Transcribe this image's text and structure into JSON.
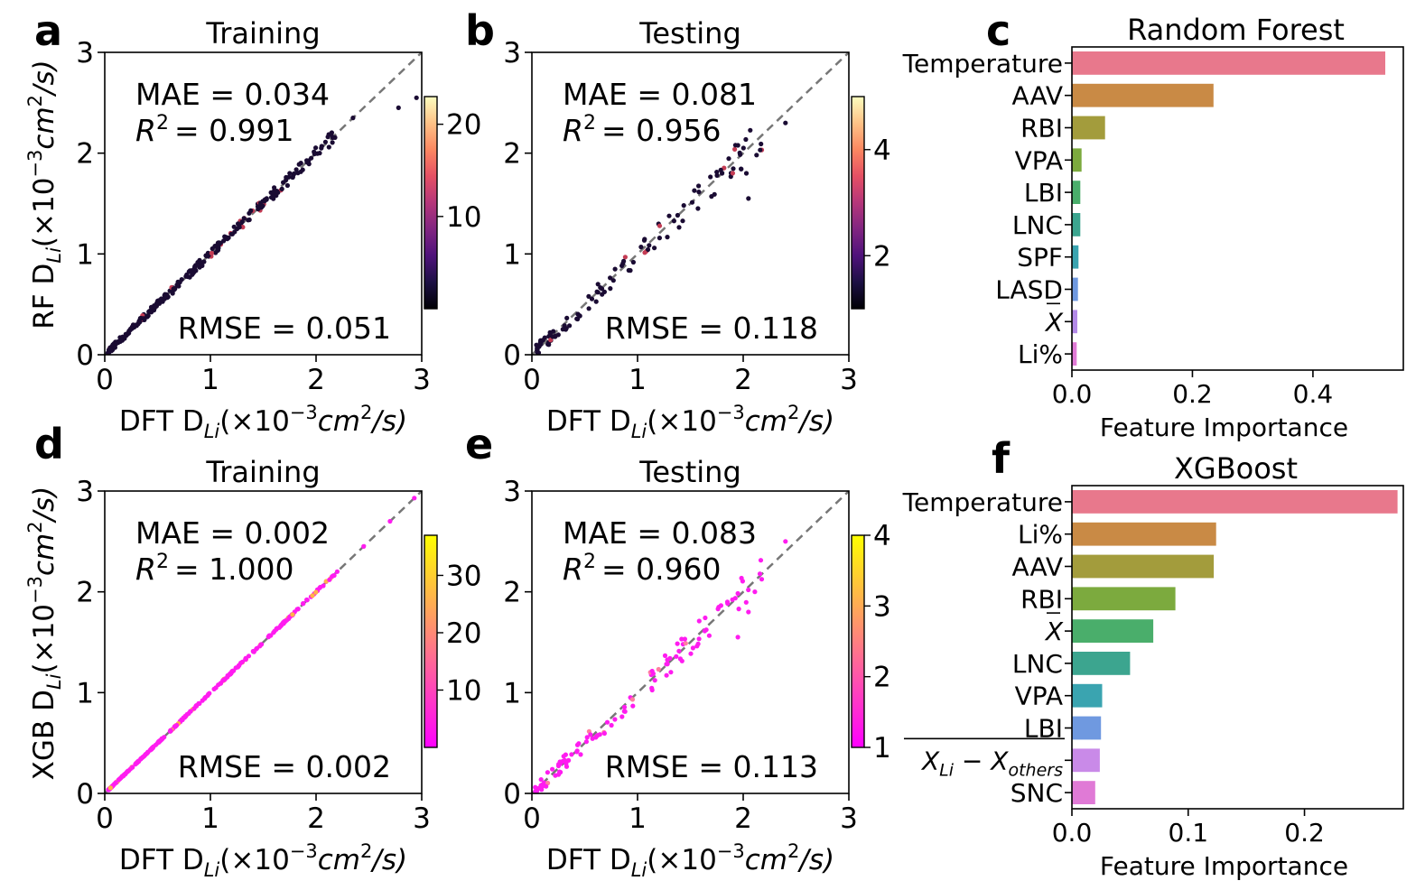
{
  "chart_data": [
    {
      "panel": "a",
      "type": "scatter",
      "title": "Training",
      "xlabel": "DFT D_Li(×10⁻³cm²/s)",
      "ylabel": "RF D_Li(×10⁻³cm²/s)",
      "xlim": [
        0,
        3
      ],
      "ylim": [
        0,
        3
      ],
      "xticks": [
        0,
        1,
        2,
        3
      ],
      "yticks": [
        0,
        1,
        2,
        3
      ],
      "stats": {
        "mae": "MAE = 0.034",
        "r2_value": "= 0.991",
        "rmse": "RMSE = 0.051"
      },
      "colorbar": {
        "colormap": "magma",
        "min": 0,
        "max": 23,
        "ticks": [
          10,
          20
        ]
      },
      "noise": 0.04,
      "point_color": "#1a0b33",
      "accent_color": "#c43c54",
      "seed": 11,
      "n": 280,
      "highlights": [
        [
          2.78,
          2.45
        ],
        [
          2.95,
          2.55
        ],
        [
          2.05,
          2.05
        ],
        [
          2.35,
          2.35
        ]
      ]
    },
    {
      "panel": "b",
      "type": "scatter",
      "title": "Testing",
      "xlabel": "DFT D_Li(×10⁻³cm²/s)",
      "ylabel": "",
      "xlim": [
        0,
        3
      ],
      "ylim": [
        0,
        3
      ],
      "xticks": [
        0,
        1,
        2,
        3
      ],
      "yticks": [
        0,
        1,
        2,
        3
      ],
      "stats": {
        "mae": "MAE = 0.081",
        "r2_value": "= 0.956",
        "rmse": "RMSE = 0.118"
      },
      "colorbar": {
        "colormap": "magma",
        "min": 1,
        "max": 5,
        "ticks": [
          2,
          4
        ]
      },
      "noise": 0.1,
      "point_color": "#1a0b33",
      "accent_color": "#c43c54",
      "seed": 23,
      "n": 110,
      "highlights": [
        [
          2.4,
          2.3
        ],
        [
          2.05,
          1.55
        ],
        [
          2.03,
          1.8
        ],
        [
          1.8,
          1.8
        ]
      ]
    },
    {
      "panel": "c",
      "type": "bar",
      "orientation": "horizontal",
      "title": "Random Forest",
      "xlabel": "Feature Importance",
      "xlim": [
        0,
        0.55
      ],
      "xticks": [
        0.0,
        0.2,
        0.4
      ],
      "categories": [
        "Temperature",
        "AAV",
        "RBI",
        "VPA",
        "LBI",
        "LNC",
        "SPF",
        "LASD",
        "X",
        "Li%"
      ],
      "values": [
        0.52,
        0.235,
        0.055,
        0.016,
        0.014,
        0.014,
        0.011,
        0.01,
        0.009,
        0.008
      ],
      "colors": [
        "#e8788c",
        "#c98a45",
        "#a39c3c",
        "#7caa3e",
        "#4aae6b",
        "#3ca58f",
        "#3aa4b0",
        "#6f99e0",
        "#b38ae8",
        "#e07ad6"
      ]
    },
    {
      "panel": "d",
      "type": "scatter",
      "title": "Training",
      "xlabel": "DFT D_Li(×10⁻³cm²/s)",
      "ylabel": "XGB D_Li(×10⁻³cm²/s)",
      "xlim": [
        0,
        3
      ],
      "ylim": [
        0,
        3
      ],
      "xticks": [
        0,
        1,
        2,
        3
      ],
      "yticks": [
        0,
        1,
        2,
        3
      ],
      "stats": {
        "mae": "MAE = 0.002",
        "r2_value": "= 1.000",
        "rmse": "RMSE = 0.002"
      },
      "colorbar": {
        "colormap": "spring",
        "min": 0,
        "max": 37,
        "ticks": [
          10,
          20,
          30
        ]
      },
      "noise": 0.006,
      "point_color": "#ff1cf0",
      "accent_color": "#ffb347",
      "seed": 37,
      "n": 260,
      "highlights": [
        [
          2.93,
          2.93
        ],
        [
          2.7,
          2.7
        ],
        [
          2.45,
          2.45
        ],
        [
          2.2,
          2.2
        ]
      ]
    },
    {
      "panel": "e",
      "type": "scatter",
      "title": "Testing",
      "xlabel": "DFT D_Li(×10⁻³cm²/s)",
      "ylabel": "",
      "xlim": [
        0,
        3
      ],
      "ylim": [
        0,
        3
      ],
      "xticks": [
        0,
        1,
        2,
        3
      ],
      "yticks": [
        0,
        1,
        2,
        3
      ],
      "stats": {
        "mae": "MAE = 0.083",
        "r2_value": "= 0.960",
        "rmse": "RMSE = 0.113"
      },
      "colorbar": {
        "colormap": "spring",
        "min": 1,
        "max": 4,
        "ticks": [
          1,
          2,
          3,
          4
        ]
      },
      "noise": 0.1,
      "point_color": "#ff1cf0",
      "accent_color": "#ff7fa0",
      "seed": 53,
      "n": 110,
      "highlights": [
        [
          2.4,
          2.5
        ],
        [
          2.05,
          1.8
        ],
        [
          1.85,
          1.9
        ],
        [
          1.95,
          1.55
        ]
      ]
    },
    {
      "panel": "f",
      "type": "bar",
      "orientation": "horizontal",
      "title": "XGBoost",
      "xlabel": "Feature Importance",
      "xlim": [
        0,
        0.285
      ],
      "xticks": [
        0.0,
        0.1,
        0.2
      ],
      "categories": [
        "Temperature",
        "Li%",
        "AAV",
        "RBI",
        "X",
        "LNC",
        "VPA",
        "LBI",
        "X_Li − X_others",
        "SNC"
      ],
      "values": [
        0.28,
        0.124,
        0.122,
        0.089,
        0.07,
        0.05,
        0.026,
        0.025,
        0.024,
        0.02
      ],
      "colors": [
        "#e8788c",
        "#c98a45",
        "#a39c3c",
        "#7caa3e",
        "#4aae6b",
        "#3ca58f",
        "#3aa4b0",
        "#6f99e0",
        "#c98ae8",
        "#e07ad6"
      ]
    }
  ]
}
